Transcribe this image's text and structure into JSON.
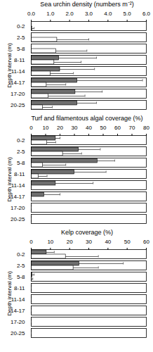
{
  "chart_data": [
    {
      "type": "bar",
      "orientation": "horizontal",
      "title": "Sea urchin density (numbers m⁻²)",
      "ylabel": "Depth interval (m)",
      "categories": [
        "0-2",
        "2-5",
        "5-8",
        "8-11",
        "11-14",
        "14-17",
        "17-20",
        "20-25"
      ],
      "xlim": [
        0,
        6
      ],
      "xticks": [
        0,
        1,
        2,
        3,
        4,
        5,
        6
      ],
      "grid": false,
      "series": [
        {
          "color": "#6e6e6e",
          "values": [
            0,
            0,
            0,
            1.45,
            1.5,
            2.4,
            2.3,
            2.4
          ],
          "errors": [
            0,
            0,
            0,
            1.95,
            1.8,
            3.4,
            1.4,
            1.0
          ]
        },
        {
          "color": "#ffffff",
          "values": [
            0.05,
            1.35,
            1.3,
            1.2,
            1.0,
            0.8,
            0.9,
            0.6
          ],
          "errors": [
            0.1,
            1.65,
            1.6,
            1.4,
            1.2,
            1.0,
            1.9,
            0.5
          ]
        }
      ]
    },
    {
      "type": "bar",
      "orientation": "horizontal",
      "title": "Turf and filamentous algal coverage (%)",
      "ylabel": "Depth interval (m)",
      "categories": [
        "0-2",
        "2-5",
        "5-8",
        "8-11",
        "11-14",
        "14-17",
        "17-20",
        "20-25"
      ],
      "xlim": [
        0,
        80
      ],
      "xticks": [
        0,
        10,
        20,
        30,
        40,
        50,
        60,
        70,
        80
      ],
      "grid": false,
      "series": [
        {
          "color": "#6e6e6e",
          "values": [
            17,
            33,
            46,
            30,
            17,
            9,
            0,
            0
          ],
          "errors": [
            3,
            15,
            12,
            22,
            26,
            11,
            0,
            0
          ]
        },
        {
          "color": "#ffffff",
          "values": [
            11,
            22,
            8,
            5,
            0,
            0,
            0,
            0
          ],
          "errors": [
            6,
            13,
            16,
            6,
            0,
            0,
            0,
            0
          ]
        }
      ]
    },
    {
      "type": "bar",
      "orientation": "horizontal",
      "title": "Kelp coverage (%)",
      "ylabel": "Depth interval (m)",
      "categories": [
        "0-2",
        "2-5",
        "5-8",
        "8-11",
        "11-14",
        "14-17",
        "17-20",
        "20-25"
      ],
      "xlim": [
        0,
        60
      ],
      "xticks": [
        0,
        10,
        20,
        30,
        40,
        50,
        60
      ],
      "grid": false,
      "series": [
        {
          "color": "#6e6e6e",
          "values": [
            8,
            25,
            0.5,
            0,
            0,
            0,
            0,
            0
          ],
          "errors": [
            4,
            23,
            1,
            0,
            0,
            0,
            0,
            0
          ]
        },
        {
          "color": "#ffffff",
          "values": [
            18,
            22,
            0.3,
            0,
            0,
            0,
            0,
            0
          ],
          "errors": [
            17,
            13,
            0.5,
            0,
            0,
            0,
            0,
            0
          ]
        }
      ]
    }
  ]
}
